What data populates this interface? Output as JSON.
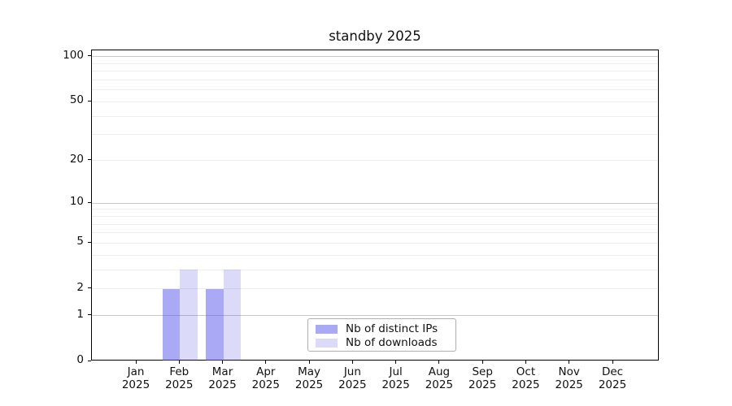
{
  "chart_data": {
    "type": "bar",
    "title": "standby 2025",
    "categories": [
      "Jan 2025",
      "Feb 2025",
      "Mar 2025",
      "Apr 2025",
      "May 2025",
      "Jun 2025",
      "Jul 2025",
      "Aug 2025",
      "Sep 2025",
      "Oct 2025",
      "Nov 2025",
      "Dec 2025"
    ],
    "series": [
      {
        "name": "Nb of distinct IPs",
        "color": "rgba(83,83,235,0.5)",
        "color_hex": "#a9a9f5",
        "values": [
          0,
          2,
          2,
          0,
          0,
          0,
          0,
          0,
          0,
          0,
          0,
          0
        ]
      },
      {
        "name": "Nb of downloads",
        "color": "rgba(75,75,225,0.2)",
        "color_hex": "#dbdbf9",
        "values": [
          0,
          3,
          3,
          0,
          0,
          0,
          0,
          0,
          0,
          0,
          0,
          0
        ]
      }
    ],
    "xlabel": "",
    "ylabel": "",
    "y_axis": {
      "scale": "log1p",
      "tick_labels": [
        "100",
        "50",
        "20",
        "10",
        "5",
        "2",
        "1",
        "0"
      ],
      "tick_values": [
        100,
        50,
        20,
        10,
        5,
        2,
        1,
        0
      ],
      "major_grid_values": [
        1,
        10,
        100
      ],
      "minor_grid_values": [
        2,
        3,
        4,
        5,
        6,
        7,
        8,
        9,
        20,
        30,
        40,
        50,
        60,
        70,
        80,
        90
      ],
      "ylim": [
        0,
        110.4
      ]
    },
    "grid": true,
    "legend": {
      "position": "lower center",
      "entries": [
        "Nb of distinct IPs",
        "Nb of downloads"
      ]
    }
  }
}
